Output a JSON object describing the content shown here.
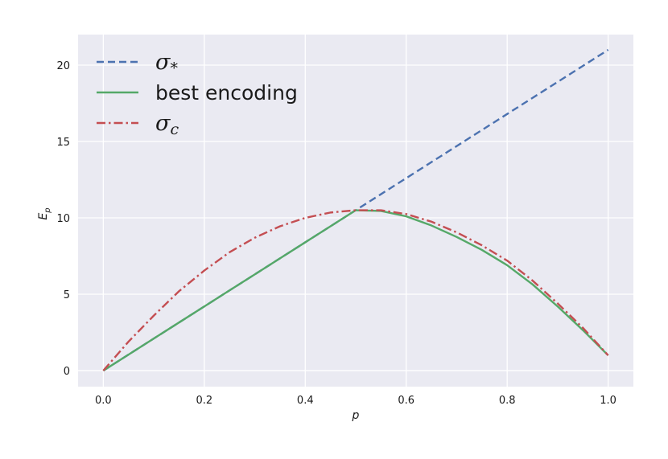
{
  "chart_data": {
    "type": "line",
    "xlabel": "p",
    "ylabel": "E_p",
    "xlim": [
      -0.05,
      1.05
    ],
    "ylim": [
      -1.05,
      22.0
    ],
    "x_ticks": [
      0.0,
      0.2,
      0.4,
      0.6,
      0.8,
      1.0
    ],
    "x_tick_labels": [
      "0.0",
      "0.2",
      "0.4",
      "0.6",
      "0.8",
      "1.0"
    ],
    "y_ticks": [
      0,
      5,
      10,
      15,
      20
    ],
    "y_tick_labels": [
      "0",
      "5",
      "10",
      "15",
      "20"
    ],
    "grid": true,
    "legend_placement": "top-left",
    "x": [
      0.0,
      0.05,
      0.1,
      0.15,
      0.2,
      0.25,
      0.3,
      0.35,
      0.4,
      0.45,
      0.5,
      0.55,
      0.6,
      0.65,
      0.7,
      0.75,
      0.8,
      0.85,
      0.9,
      0.95,
      1.0
    ],
    "series": [
      {
        "name": "σ*",
        "legend_main": "σ",
        "legend_sub": "*",
        "color": "#4C72B0",
        "style": "dashed",
        "values": [
          0.0,
          1.05,
          2.1,
          3.15,
          4.2,
          5.25,
          6.3,
          7.35,
          8.4,
          9.45,
          10.5,
          11.55,
          12.6,
          13.65,
          14.7,
          15.75,
          16.8,
          17.85,
          18.9,
          19.95,
          21.0
        ]
      },
      {
        "name": "best encoding",
        "legend_main": "best encoding",
        "legend_sub": "",
        "color": "#55A868",
        "style": "solid",
        "values": [
          0.0,
          1.05,
          2.1,
          3.15,
          4.2,
          5.25,
          6.3,
          7.35,
          8.4,
          9.45,
          10.5,
          10.45,
          10.1,
          9.5,
          8.75,
          7.9,
          6.9,
          5.65,
          4.2,
          2.65,
          1.0
        ]
      },
      {
        "name": "σc",
        "legend_main": "σ",
        "legend_sub": "c",
        "color": "#C44E52",
        "style": "dashdot",
        "values": [
          0.0,
          1.9,
          3.6,
          5.2,
          6.55,
          7.75,
          8.7,
          9.45,
          10.0,
          10.35,
          10.5,
          10.5,
          10.25,
          9.75,
          9.05,
          8.2,
          7.2,
          5.9,
          4.4,
          2.8,
          1.0
        ]
      }
    ]
  }
}
